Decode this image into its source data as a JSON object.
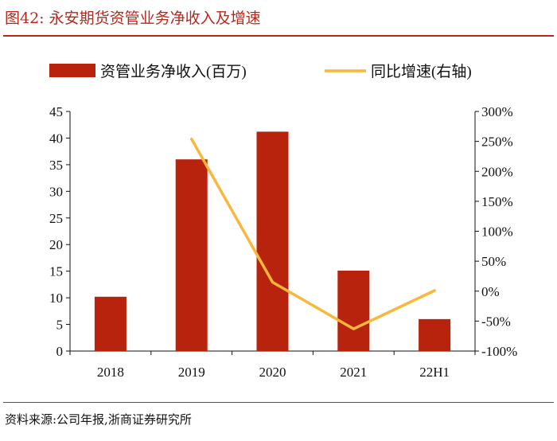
{
  "title": "图42:  永安期货资管业务净收入及增速",
  "source": "资料来源:公司年报,浙商证券研究所",
  "chart_data": {
    "type": "bar",
    "categories": [
      "2018",
      "2019",
      "2020",
      "2021",
      "22H1"
    ],
    "series": [
      {
        "name": "资管业务净收入(百万)",
        "type": "bar",
        "axis": "left",
        "color": "#b8230d",
        "values": [
          10.2,
          36,
          41.2,
          15.1,
          6
        ]
      },
      {
        "name": "同比增速(右轴)",
        "type": "line",
        "axis": "right",
        "color": "#f9b73c",
        "values": [
          null,
          254,
          15,
          -63,
          1
        ]
      }
    ],
    "ylim": [
      0,
      45
    ],
    "yticks": [
      "0",
      "5",
      "10",
      "15",
      "20",
      "25",
      "30",
      "35",
      "40",
      "45"
    ],
    "y2lim": [
      -100,
      300
    ],
    "y2ticks": [
      "-100%",
      "-50%",
      "0%",
      "50%",
      "100%",
      "150%",
      "200%",
      "250%",
      "300%"
    ],
    "legend_position": "top",
    "grid": false
  }
}
